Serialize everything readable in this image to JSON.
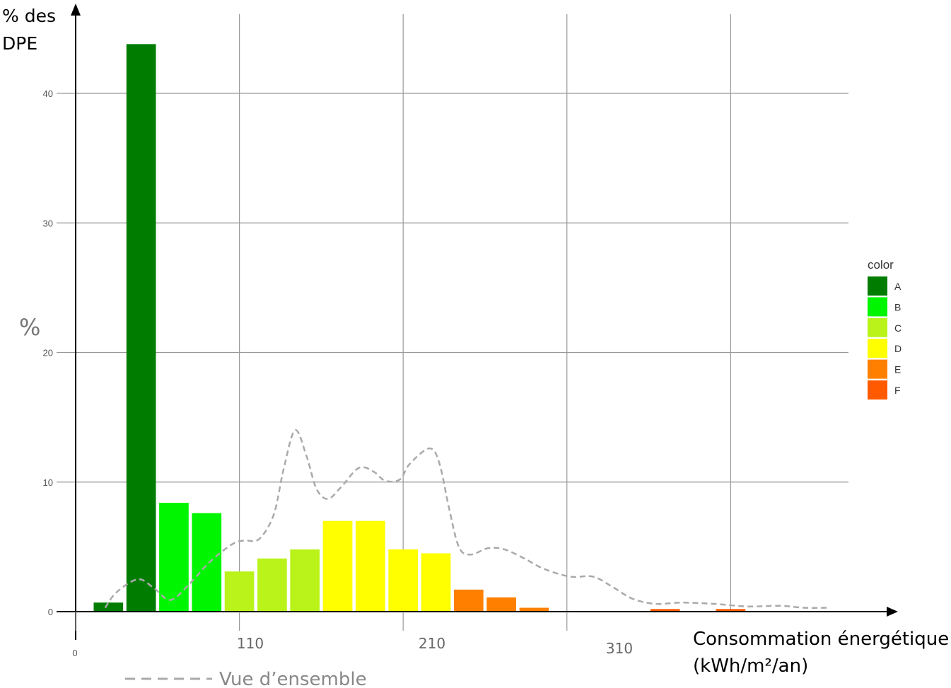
{
  "chart_data": {
    "type": "bar",
    "ylabel_top": [
      "% des",
      "DPE"
    ],
    "ylabel_side": "%",
    "xlabel": [
      "Consommation énergétique",
      "(kWh/m²/an)"
    ],
    "ylim": [
      0,
      45
    ],
    "yticks": [
      0,
      10,
      20,
      30,
      40
    ],
    "xticks_small": [
      {
        "label": "0",
        "x": 10
      }
    ],
    "xticks": [
      {
        "label": "110",
        "x": 110
      },
      {
        "label": "210",
        "x": 210
      },
      {
        "label": "310",
        "x": 310
      }
    ],
    "xlim": [
      10,
      450
    ],
    "gridlines_x": [
      110,
      210,
      310,
      410
    ],
    "grid": true,
    "legend": {
      "title": "color",
      "position": "right",
      "entries": [
        {
          "label": "A",
          "color": "#007d00"
        },
        {
          "label": "B",
          "color": "#00f500"
        },
        {
          "label": "C",
          "color": "#b9f31a"
        },
        {
          "label": "D",
          "color": "#ffff00"
        },
        {
          "label": "E",
          "color": "#ff8000"
        },
        {
          "label": "F",
          "color": "#ff5a00"
        }
      ]
    },
    "bars": [
      {
        "x0": 21,
        "x1": 39,
        "value": 0.7,
        "class": "A"
      },
      {
        "x0": 41,
        "x1": 59,
        "value": 43.8,
        "class": "A"
      },
      {
        "x0": 61,
        "x1": 79,
        "value": 8.4,
        "class": "B"
      },
      {
        "x0": 81,
        "x1": 99,
        "value": 7.6,
        "class": "B"
      },
      {
        "x0": 101,
        "x1": 119,
        "value": 3.1,
        "class": "C"
      },
      {
        "x0": 121,
        "x1": 139,
        "value": 4.1,
        "class": "C"
      },
      {
        "x0": 141,
        "x1": 159,
        "value": 4.8,
        "class": "C"
      },
      {
        "x0": 161,
        "x1": 179,
        "value": 7.0,
        "class": "D"
      },
      {
        "x0": 181,
        "x1": 199,
        "value": 7.0,
        "class": "D"
      },
      {
        "x0": 201,
        "x1": 219,
        "value": 4.8,
        "class": "D"
      },
      {
        "x0": 221,
        "x1": 239,
        "value": 4.5,
        "class": "D"
      },
      {
        "x0": 241,
        "x1": 259,
        "value": 1.7,
        "class": "E"
      },
      {
        "x0": 261,
        "x1": 279,
        "value": 1.1,
        "class": "E"
      },
      {
        "x0": 281,
        "x1": 299,
        "value": 0.3,
        "class": "E"
      },
      {
        "x0": 361,
        "x1": 379,
        "value": 0.2,
        "class": "F"
      },
      {
        "x0": 401,
        "x1": 419,
        "value": 0.2,
        "class": "F"
      }
    ],
    "overview_line": {
      "name": "Vue d’ensemble",
      "style": "dashed",
      "color": "#aaaaaa",
      "points": [
        [
          28,
          0.3
        ],
        [
          35,
          1.5
        ],
        [
          48,
          2.5
        ],
        [
          58,
          1.8
        ],
        [
          68,
          0.9
        ],
        [
          80,
          2.2
        ],
        [
          90,
          3.6
        ],
        [
          100,
          4.7
        ],
        [
          107,
          5.3
        ],
        [
          113,
          5.5
        ],
        [
          122,
          5.6
        ],
        [
          131,
          7.5
        ],
        [
          137,
          11.0
        ],
        [
          144,
          14.0
        ],
        [
          151,
          12.0
        ],
        [
          157,
          9.5
        ],
        [
          164,
          8.7
        ],
        [
          172,
          9.6
        ],
        [
          183,
          11.1
        ],
        [
          192,
          10.8
        ],
        [
          199,
          10.1
        ],
        [
          208,
          10.2
        ],
        [
          214,
          11.4
        ],
        [
          226,
          12.6
        ],
        [
          232,
          11.5
        ],
        [
          238,
          8.0
        ],
        [
          244,
          5.0
        ],
        [
          251,
          4.4
        ],
        [
          262,
          4.9
        ],
        [
          272,
          4.8
        ],
        [
          284,
          4.1
        ],
        [
          296,
          3.3
        ],
        [
          312,
          2.7
        ],
        [
          326,
          2.7
        ],
        [
          338,
          1.9
        ],
        [
          350,
          1.0
        ],
        [
          364,
          0.6
        ],
        [
          380,
          0.7
        ],
        [
          400,
          0.6
        ],
        [
          420,
          0.4
        ],
        [
          440,
          0.45
        ],
        [
          455,
          0.3
        ],
        [
          470,
          0.3
        ]
      ]
    }
  }
}
